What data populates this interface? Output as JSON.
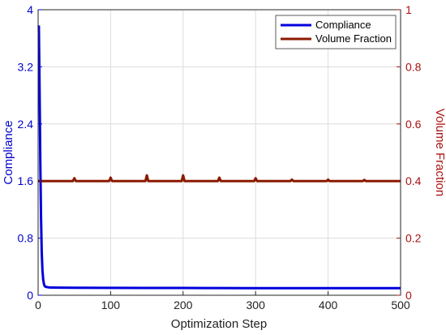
{
  "chart_data": {
    "type": "line",
    "xlabel": "Optimization Step",
    "ylabel_left": "Compliance",
    "ylabel_right": "Volume Fraction",
    "xlim": [
      0,
      500
    ],
    "ylim_left": [
      0,
      4
    ],
    "ylim_right": [
      0,
      1
    ],
    "xticks": [
      "0",
      "100",
      "200",
      "300",
      "400",
      "500"
    ],
    "yticks_left": [
      "0",
      "0.8",
      "1.6",
      "2.4",
      "3.2",
      "4"
    ],
    "yticks_right": [
      "0",
      "0.2",
      "0.4",
      "0.6",
      "0.8",
      "1"
    ],
    "grid": true,
    "legend_position": "top-right",
    "series": [
      {
        "name": "Compliance",
        "axis": "left",
        "color": "#0000dd",
        "x": [
          1,
          2,
          3,
          4,
          5,
          6,
          7,
          8,
          9,
          10,
          12,
          15,
          20,
          30,
          50,
          100,
          150,
          200,
          250,
          300,
          350,
          400,
          450,
          500
        ],
        "y": [
          3.78,
          2.9,
          1.9,
          1.1,
          0.6,
          0.35,
          0.22,
          0.16,
          0.13,
          0.12,
          0.115,
          0.11,
          0.108,
          0.106,
          0.105,
          0.104,
          0.103,
          0.102,
          0.101,
          0.1,
          0.1,
          0.1,
          0.1,
          0.1
        ]
      },
      {
        "name": "Volume Fraction",
        "axis": "right",
        "color": "#8b1a00",
        "x": [
          0,
          48,
          50,
          52,
          98,
          100,
          102,
          148,
          150,
          152,
          198,
          200,
          202,
          248,
          250,
          252,
          298,
          300,
          302,
          348,
          350,
          352,
          398,
          400,
          402,
          448,
          450,
          452,
          500
        ],
        "y": [
          0.4,
          0.4,
          0.41,
          0.4,
          0.4,
          0.412,
          0.4,
          0.4,
          0.42,
          0.4,
          0.4,
          0.42,
          0.4,
          0.4,
          0.412,
          0.4,
          0.4,
          0.41,
          0.4,
          0.4,
          0.405,
          0.4,
          0.4,
          0.405,
          0.4,
          0.4,
          0.404,
          0.4,
          0.4
        ]
      }
    ]
  },
  "colors": {
    "left_axis": "#0000cc",
    "right_axis": "#aa1111",
    "grid": "#dcdcdc"
  }
}
